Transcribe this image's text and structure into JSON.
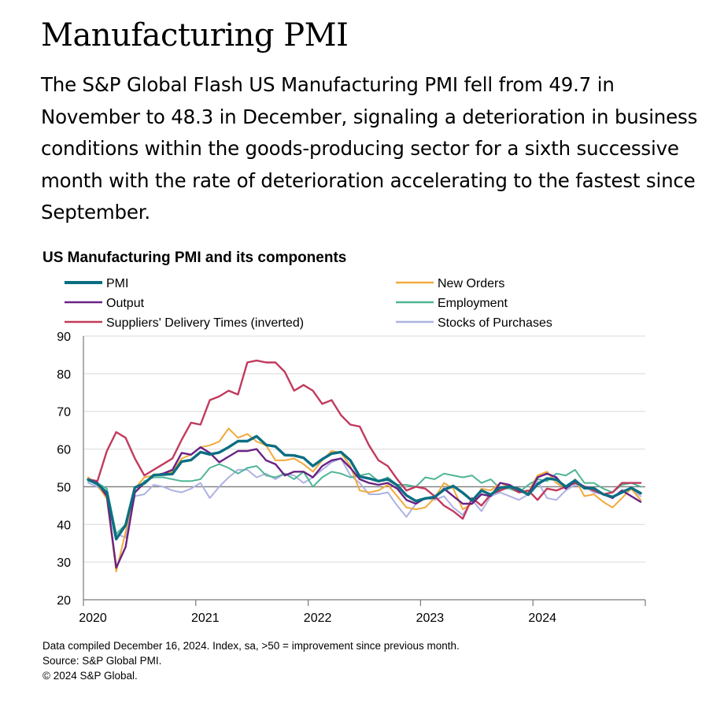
{
  "header": {
    "title": "Manufacturing PMI",
    "lede": "The S&P Global Flash US Manufacturing PMI fell from 49.7 in November to 48.3 in December, signaling a deterioration in business conditions within the goods-producing sector for a sixth successive month with the rate of deterioration accelerating to the fastest since September."
  },
  "footer": {
    "note": "Data compiled December 16, 2024. Index, sa, >50 = improvement since previous month.",
    "source": "Source: S&P Global PMI.",
    "copyright": "© 2024 S&P Global."
  },
  "chart_data": {
    "type": "line",
    "title": "US Manufacturing PMI and its components",
    "xlabel": "",
    "ylabel": "",
    "ylim": [
      20,
      90
    ],
    "y_ticks": [
      20,
      30,
      40,
      50,
      60,
      70,
      80,
      90
    ],
    "x_ticks": [
      "2020",
      "2021",
      "2022",
      "2023",
      "2024"
    ],
    "grid": true,
    "reference_line": 50,
    "legend_position": "top",
    "x_start": "2020-01",
    "x_end": "2024-12",
    "series": [
      {
        "name": "PMI",
        "color": "#0b6e82",
        "width": 3.4,
        "values": [
          51.9,
          50.7,
          48.5,
          36.1,
          39.8,
          49.8,
          50.9,
          53.1,
          53.2,
          53.4,
          56.7,
          57.1,
          59.2,
          58.6,
          59.1,
          60.5,
          62.1,
          62.1,
          63.4,
          61.1,
          60.7,
          58.4,
          58.3,
          57.7,
          55.5,
          57.3,
          58.8,
          59.2,
          57.0,
          52.7,
          52.2,
          51.5,
          52.0,
          50.4,
          47.7,
          46.2,
          46.9,
          47.3,
          49.2,
          50.2,
          48.4,
          46.3,
          49.0,
          47.9,
          49.8,
          50.0,
          49.4,
          47.9,
          50.7,
          52.2,
          51.9,
          50.0,
          51.7,
          49.6,
          49.6,
          48.0,
          47.3,
          48.5,
          49.7,
          48.3
        ]
      },
      {
        "name": "New Orders",
        "color": "#f2a93b",
        "width": 2.0,
        "values": [
          52.5,
          50.5,
          46.8,
          27.5,
          38.0,
          49.5,
          52.5,
          53.0,
          53.5,
          54.0,
          57.5,
          58.5,
          60.5,
          61.0,
          62.0,
          65.5,
          63.0,
          64.0,
          62.0,
          61.0,
          57.0,
          57.0,
          57.5,
          56.0,
          54.0,
          57.0,
          59.5,
          59.0,
          55.5,
          49.0,
          48.5,
          49.0,
          50.5,
          47.5,
          44.5,
          44.0,
          44.5,
          47.0,
          51.0,
          49.5,
          44.0,
          45.5,
          49.5,
          49.0,
          51.0,
          50.0,
          48.5,
          48.5,
          53.0,
          54.0,
          51.0,
          49.5,
          52.0,
          47.5,
          48.0,
          46.0,
          44.5,
          47.0,
          49.5,
          46.5
        ]
      },
      {
        "name": "Output",
        "color": "#6a2283",
        "width": 2.4,
        "values": [
          52.0,
          51.0,
          47.5,
          28.5,
          34.0,
          48.5,
          51.0,
          53.0,
          53.5,
          54.5,
          59.0,
          58.5,
          60.5,
          59.0,
          56.5,
          58.0,
          59.5,
          59.5,
          60.0,
          57.0,
          56.0,
          53.0,
          54.0,
          54.0,
          52.5,
          55.5,
          57.0,
          57.5,
          55.0,
          52.0,
          51.0,
          50.5,
          51.0,
          49.5,
          46.5,
          45.5,
          47.0,
          47.0,
          49.5,
          47.5,
          45.5,
          45.5,
          48.0,
          47.5,
          51.0,
          50.5,
          49.0,
          48.0,
          52.5,
          53.5,
          52.5,
          49.5,
          51.5,
          50.0,
          49.5,
          48.0,
          47.0,
          49.0,
          47.5,
          46.0
        ]
      },
      {
        "name": "Employment",
        "color": "#4fb596",
        "width": 2.0,
        "values": [
          51.5,
          51.0,
          49.5,
          37.5,
          40.0,
          48.5,
          51.5,
          52.5,
          52.5,
          52.0,
          51.5,
          51.5,
          52.0,
          55.0,
          56.0,
          55.0,
          53.5,
          55.0,
          55.5,
          53.0,
          52.5,
          53.5,
          52.0,
          54.0,
          50.0,
          52.5,
          54.0,
          53.5,
          52.5,
          53.0,
          53.5,
          51.5,
          52.5,
          50.5,
          50.5,
          50.0,
          52.5,
          52.0,
          53.5,
          53.0,
          52.5,
          53.0,
          51.0,
          52.0,
          49.5,
          49.5,
          48.5,
          50.5,
          52.0,
          51.5,
          53.5,
          53.0,
          54.5,
          51.0,
          51.0,
          49.5,
          48.5,
          50.5,
          51.0,
          50.0
        ]
      },
      {
        "name": "Suppliers' Delivery Times (inverted)",
        "color": "#c23a5d",
        "width": 2.4,
        "values": [
          52.0,
          51.5,
          59.5,
          64.5,
          63.0,
          57.5,
          53.0,
          54.5,
          56.0,
          57.5,
          62.5,
          67.0,
          66.5,
          73.0,
          74.0,
          75.5,
          74.5,
          83.0,
          83.5,
          83.0,
          83.0,
          80.5,
          75.5,
          77.0,
          75.5,
          72.0,
          73.0,
          69.0,
          66.5,
          66.0,
          61.0,
          57.0,
          55.5,
          52.0,
          49.0,
          50.0,
          49.5,
          47.5,
          45.0,
          43.5,
          41.5,
          47.0,
          45.0,
          48.0,
          49.0,
          50.0,
          48.5,
          49.0,
          46.5,
          49.5,
          49.0,
          50.0,
          51.0,
          50.0,
          49.0,
          48.0,
          48.5,
          51.0,
          51.0,
          51.0
        ]
      },
      {
        "name": "Stocks of Purchases",
        "color": "#aeb2e2",
        "width": 2.0,
        "values": [
          51.0,
          50.0,
          47.5,
          37.5,
          36.5,
          47.5,
          48.0,
          50.5,
          50.0,
          49.0,
          48.5,
          49.5,
          51.0,
          47.0,
          50.0,
          52.5,
          54.5,
          54.5,
          52.5,
          53.5,
          52.0,
          53.5,
          53.0,
          51.0,
          52.5,
          54.5,
          56.5,
          57.5,
          53.0,
          51.0,
          48.0,
          48.0,
          48.5,
          45.0,
          42.0,
          45.5,
          47.0,
          46.5,
          47.5,
          44.5,
          42.5,
          46.5,
          43.5,
          47.5,
          48.5,
          47.5,
          46.5,
          48.0,
          51.5,
          47.0,
          46.5,
          49.0,
          50.5,
          50.0,
          48.5,
          48.0,
          47.0,
          49.0,
          49.5,
          47.5
        ]
      }
    ]
  }
}
